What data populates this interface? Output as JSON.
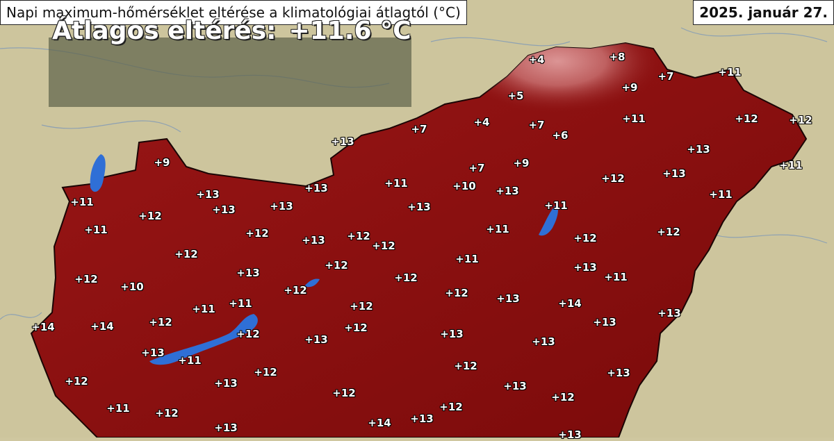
{
  "title": "Napi maximum-hőmérséklet eltérése a klimatológiai átlagtól (°C)",
  "date": "2025. január 27.",
  "average": {
    "label": "Átlagos eltérés:",
    "value": "+11.6 °C"
  },
  "colors": {
    "land_outside": "#cfc7a0",
    "hungary_fill": "#8a0e0e",
    "north_highlands": "#d98a8a",
    "water": "#2f6fd6",
    "label_text": "#ffffff"
  },
  "anomalies": [
    "+4",
    "+8",
    "+5",
    "+7",
    "+9",
    "+11",
    "+7",
    "+4",
    "+7",
    "+6",
    "+11",
    "+12",
    "+12",
    "+13",
    "+13",
    "+7",
    "+9",
    "+11",
    "+9",
    "+10",
    "+12",
    "+11",
    "+13",
    "+13",
    "+13",
    "+11",
    "+13",
    "+11",
    "+13",
    "+13",
    "+13",
    "+11",
    "+12",
    "+11",
    "+11",
    "+12",
    "+12",
    "+13",
    "+12",
    "+12",
    "+12",
    "+12",
    "+11",
    "+12",
    "+13",
    "+13",
    "+12",
    "+12",
    "+11",
    "+10",
    "+12",
    "+12",
    "+13",
    "+14",
    "+11",
    "+11",
    "+12",
    "+12",
    "+14",
    "+14",
    "+13",
    "+12",
    "+13",
    "+12",
    "+13",
    "+13",
    "+13",
    "+13",
    "+11",
    "+12",
    "+12",
    "+13",
    "+13",
    "+13",
    "+12",
    "+11",
    "+12",
    "+12",
    "+12",
    "+12",
    "+13",
    "+14",
    "+13",
    "+13"
  ]
}
